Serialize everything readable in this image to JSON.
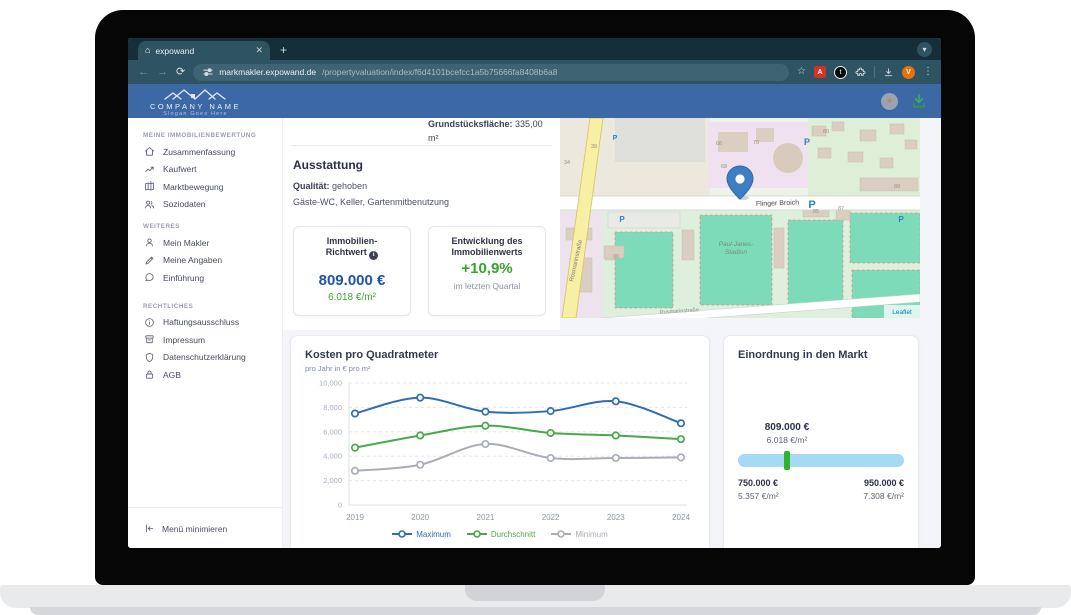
{
  "browser": {
    "tab_title": "expowand",
    "url": {
      "host": "markmakler.expowand.de",
      "path": "/propertyvaluation/index/f6d4101bcefcc1a5b75666fa8408b6a8"
    },
    "extension_initial": "t",
    "pdf_initial": "A",
    "avatar_initial": "V"
  },
  "header": {
    "company_name": "COMPANY NAME",
    "slogan": "Slogan Goes Here"
  },
  "sidebar": {
    "sections": [
      {
        "title": "MEINE IMMOBILIENBEWERTUNG",
        "items": [
          {
            "label": "Zusammenfassung",
            "icon": "home"
          },
          {
            "label": "Kaufwert",
            "icon": "trending-up"
          },
          {
            "label": "Marktbewegung",
            "icon": "map"
          },
          {
            "label": "Soziodaten",
            "icon": "users"
          }
        ]
      },
      {
        "title": "WEITERES",
        "items": [
          {
            "label": "Mein Makler",
            "icon": "user"
          },
          {
            "label": "Meine Angaben",
            "icon": "pencil"
          },
          {
            "label": "Einführung",
            "icon": "chat"
          }
        ]
      },
      {
        "title": "RECHTLICHES",
        "items": [
          {
            "label": "Haftungsausschluss",
            "icon": "info"
          },
          {
            "label": "Impressum",
            "icon": "archive"
          },
          {
            "label": "Datenschutzerklärung",
            "icon": "shield"
          },
          {
            "label": "AGB",
            "icon": "lock"
          }
        ]
      }
    ],
    "collapse_label": "Menü minimieren"
  },
  "summary": {
    "area_label": "Grundstücksfläche:",
    "area_value": "335,00 m²",
    "section_title": "Ausstattung",
    "quality_label": "Qualität:",
    "quality_value": "gehoben",
    "features": "Gäste-WC, Keller, Gartenmitbenutzung",
    "richtwert_card": {
      "title_line1": "Immobilien-",
      "title_line2": "Richtwert",
      "info_glyph": "i",
      "value": "809.000 €",
      "per_sqm": "6.018 €/m²"
    },
    "development_card": {
      "title_line1": "Entwicklung des",
      "title_line2": "Immobilienwerts",
      "value": "+10,9%",
      "subtitle": "im letzten Quartal"
    }
  },
  "map": {
    "street_main": "Flinger Broich",
    "street_side": "Rosmarinstraße",
    "stadium_line1": "Paul-Janes-",
    "stadium_line2": "Stadion",
    "attribution": "Leaflet",
    "parking_symbol": "P",
    "house_numbers": [
      "34",
      "39",
      "66",
      "68",
      "70",
      "80",
      "85",
      "87",
      "89",
      "90"
    ]
  },
  "chart_data": {
    "type": "line",
    "title": "Kosten pro Quadratmeter",
    "subtitle": "pro Jahr in € pro m²",
    "categories": [
      "2019",
      "2020",
      "2021",
      "2022",
      "2023",
      "2024"
    ],
    "series": [
      {
        "name": "Maximum",
        "color": "#2e6cb5",
        "values": [
          7500,
          8800,
          7650,
          7700,
          8500,
          6700
        ]
      },
      {
        "name": "Durchschnitt",
        "color": "#49a84c",
        "values": [
          4700,
          5700,
          6500,
          5900,
          5700,
          5400
        ]
      },
      {
        "name": "Minimum",
        "color": "#a9adb6",
        "values": [
          2800,
          3300,
          5000,
          3850,
          3850,
          3900
        ]
      }
    ],
    "ylim": [
      0,
      10000
    ],
    "ytick_labels": [
      "0",
      "2,000",
      "4,000",
      "6,000",
      "8,000",
      "10,000"
    ],
    "grid": "dashed-horizontal",
    "legend_position": "bottom"
  },
  "market": {
    "title": "Einordnung in den Markt",
    "current_price": "809.000 €",
    "current_per_sqm": "6.018 €/m²",
    "range_min_price": "750.000 €",
    "range_min_per_sqm": "5.357 €/m²",
    "range_max_price": "950.000 €",
    "range_max_per_sqm": "7.308 €/m²",
    "marker_percent": 29.5,
    "bar_color": "#a6d9f4",
    "marker_color": "#2db52a"
  }
}
